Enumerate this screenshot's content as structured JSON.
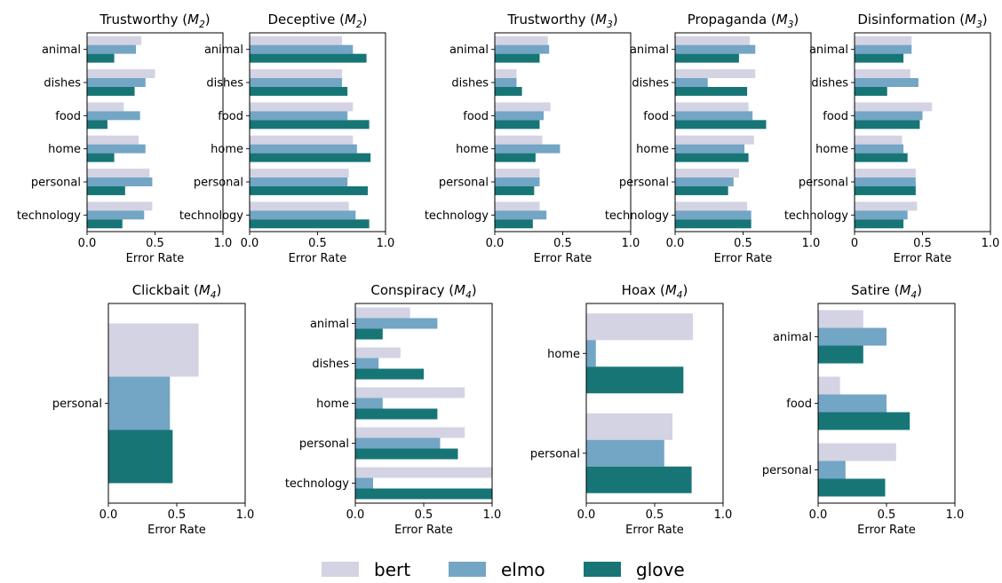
{
  "colors": {
    "bert": "#d3d3e3",
    "elmo": "#73a5c5",
    "glove": "#177576"
  },
  "legend": {
    "position": "bottom-center",
    "items": [
      "bert",
      "elmo",
      "glove"
    ]
  },
  "chart_data": [
    {
      "type": "bar",
      "orientation": "horizontal",
      "title": "Trustworthy",
      "title_sub": "2",
      "xlabel": "Error Rate",
      "xlim": [
        0,
        1
      ],
      "xticks": [
        "0.0",
        "0.5",
        "1.0"
      ],
      "categories": [
        "animal",
        "dishes",
        "food",
        "home",
        "personal",
        "technology"
      ],
      "series": [
        {
          "name": "bert",
          "values": [
            0.4,
            0.5,
            0.27,
            0.38,
            0.46,
            0.48
          ]
        },
        {
          "name": "elmo",
          "values": [
            0.36,
            0.43,
            0.39,
            0.43,
            0.48,
            0.42
          ]
        },
        {
          "name": "glove",
          "values": [
            0.2,
            0.35,
            0.15,
            0.2,
            0.28,
            0.26
          ]
        }
      ]
    },
    {
      "type": "bar",
      "orientation": "horizontal",
      "title": "Deceptive",
      "title_sub": "2",
      "xlabel": "Error Rate",
      "xlim": [
        0,
        1
      ],
      "xticks": [
        "0.0",
        "0.5",
        "1.0"
      ],
      "categories": [
        "animal",
        "dishes",
        "food",
        "home",
        "personal",
        "technology"
      ],
      "series": [
        {
          "name": "bert",
          "values": [
            0.68,
            0.68,
            0.76,
            0.76,
            0.73,
            0.73
          ]
        },
        {
          "name": "elmo",
          "values": [
            0.76,
            0.68,
            0.72,
            0.79,
            0.72,
            0.78
          ]
        },
        {
          "name": "glove",
          "values": [
            0.86,
            0.72,
            0.88,
            0.89,
            0.87,
            0.88
          ]
        }
      ]
    },
    {
      "type": "bar",
      "orientation": "horizontal",
      "title": "Trustworthy",
      "title_sub": "3",
      "xlabel": "Error Rate",
      "xlim": [
        0,
        1
      ],
      "xticks": [
        "0.0",
        "0.5",
        "1.0"
      ],
      "categories": [
        "animal",
        "dishes",
        "food",
        "home",
        "personal",
        "technology"
      ],
      "series": [
        {
          "name": "bert",
          "values": [
            0.39,
            0.16,
            0.41,
            0.35,
            0.33,
            0.33
          ]
        },
        {
          "name": "elmo",
          "values": [
            0.4,
            0.16,
            0.36,
            0.48,
            0.33,
            0.38
          ]
        },
        {
          "name": "glove",
          "values": [
            0.33,
            0.2,
            0.33,
            0.3,
            0.29,
            0.28
          ]
        }
      ]
    },
    {
      "type": "bar",
      "orientation": "horizontal",
      "title": "Propaganda",
      "title_sub": "3",
      "xlabel": "Error Rate",
      "xlim": [
        0,
        1
      ],
      "xticks": [
        "0.0",
        "0.5",
        "1.0"
      ],
      "categories": [
        "animal",
        "dishes",
        "food",
        "home",
        "personal",
        "technology"
      ],
      "series": [
        {
          "name": "bert",
          "values": [
            0.55,
            0.59,
            0.54,
            0.58,
            0.47,
            0.53
          ]
        },
        {
          "name": "elmo",
          "values": [
            0.59,
            0.24,
            0.57,
            0.51,
            0.43,
            0.56
          ]
        },
        {
          "name": "glove",
          "values": [
            0.47,
            0.53,
            0.67,
            0.54,
            0.39,
            0.56
          ]
        }
      ]
    },
    {
      "type": "bar",
      "orientation": "horizontal",
      "title": "Disinformation",
      "title_sub": "3",
      "xlabel": "Error Rate",
      "xlim": [
        0,
        1
      ],
      "xticks": [
        "0",
        "0.5",
        "1.0"
      ],
      "categories": [
        "animal",
        "dishes",
        "food",
        "home",
        "personal",
        "technology"
      ],
      "series": [
        {
          "name": "bert",
          "values": [
            0.42,
            0.41,
            0.57,
            0.35,
            0.45,
            0.46
          ]
        },
        {
          "name": "elmo",
          "values": [
            0.42,
            0.47,
            0.5,
            0.36,
            0.45,
            0.39
          ]
        },
        {
          "name": "glove",
          "values": [
            0.36,
            0.24,
            0.48,
            0.39,
            0.45,
            0.36
          ]
        }
      ]
    },
    {
      "type": "bar",
      "orientation": "horizontal",
      "title": "Clickbait",
      "title_sub": "4",
      "xlabel": "Error Rate",
      "xlim": [
        0,
        1
      ],
      "xticks": [
        "0.0",
        "0.5",
        "1.0"
      ],
      "categories": [
        "personal"
      ],
      "series": [
        {
          "name": "bert",
          "values": [
            0.66
          ]
        },
        {
          "name": "elmo",
          "values": [
            0.45
          ]
        },
        {
          "name": "glove",
          "values": [
            0.47
          ]
        }
      ]
    },
    {
      "type": "bar",
      "orientation": "horizontal",
      "title": "Conspiracy",
      "title_sub": "4",
      "xlabel": "Error Rate",
      "xlim": [
        0,
        1
      ],
      "xticks": [
        "0.0",
        "0.5",
        "1.0"
      ],
      "categories": [
        "animal",
        "dishes",
        "home",
        "personal",
        "technology"
      ],
      "series": [
        {
          "name": "bert",
          "values": [
            0.4,
            0.33,
            0.8,
            0.8,
            1.0
          ]
        },
        {
          "name": "elmo",
          "values": [
            0.6,
            0.17,
            0.2,
            0.62,
            0.13
          ]
        },
        {
          "name": "glove",
          "values": [
            0.2,
            0.5,
            0.6,
            0.75,
            1.0
          ]
        }
      ]
    },
    {
      "type": "bar",
      "orientation": "horizontal",
      "title": "Hoax",
      "title_sub": "4",
      "xlabel": "Error Rate",
      "xlim": [
        0,
        1
      ],
      "xticks": [
        "0.0",
        "0.5",
        "1.0"
      ],
      "categories": [
        "home",
        "personal"
      ],
      "series": [
        {
          "name": "bert",
          "values": [
            0.78,
            0.63
          ]
        },
        {
          "name": "elmo",
          "values": [
            0.07,
            0.57
          ]
        },
        {
          "name": "glove",
          "values": [
            0.71,
            0.77
          ]
        }
      ]
    },
    {
      "type": "bar",
      "orientation": "horizontal",
      "title": "Satire",
      "title_sub": "4",
      "xlabel": "Error Rate",
      "xlim": [
        0,
        1
      ],
      "xticks": [
        "0.0",
        "0.5",
        "1.0"
      ],
      "categories": [
        "animal",
        "food",
        "personal"
      ],
      "series": [
        {
          "name": "bert",
          "values": [
            0.33,
            0.16,
            0.57
          ]
        },
        {
          "name": "elmo",
          "values": [
            0.5,
            0.5,
            0.2
          ]
        },
        {
          "name": "glove",
          "values": [
            0.33,
            0.67,
            0.49
          ]
        }
      ]
    }
  ]
}
